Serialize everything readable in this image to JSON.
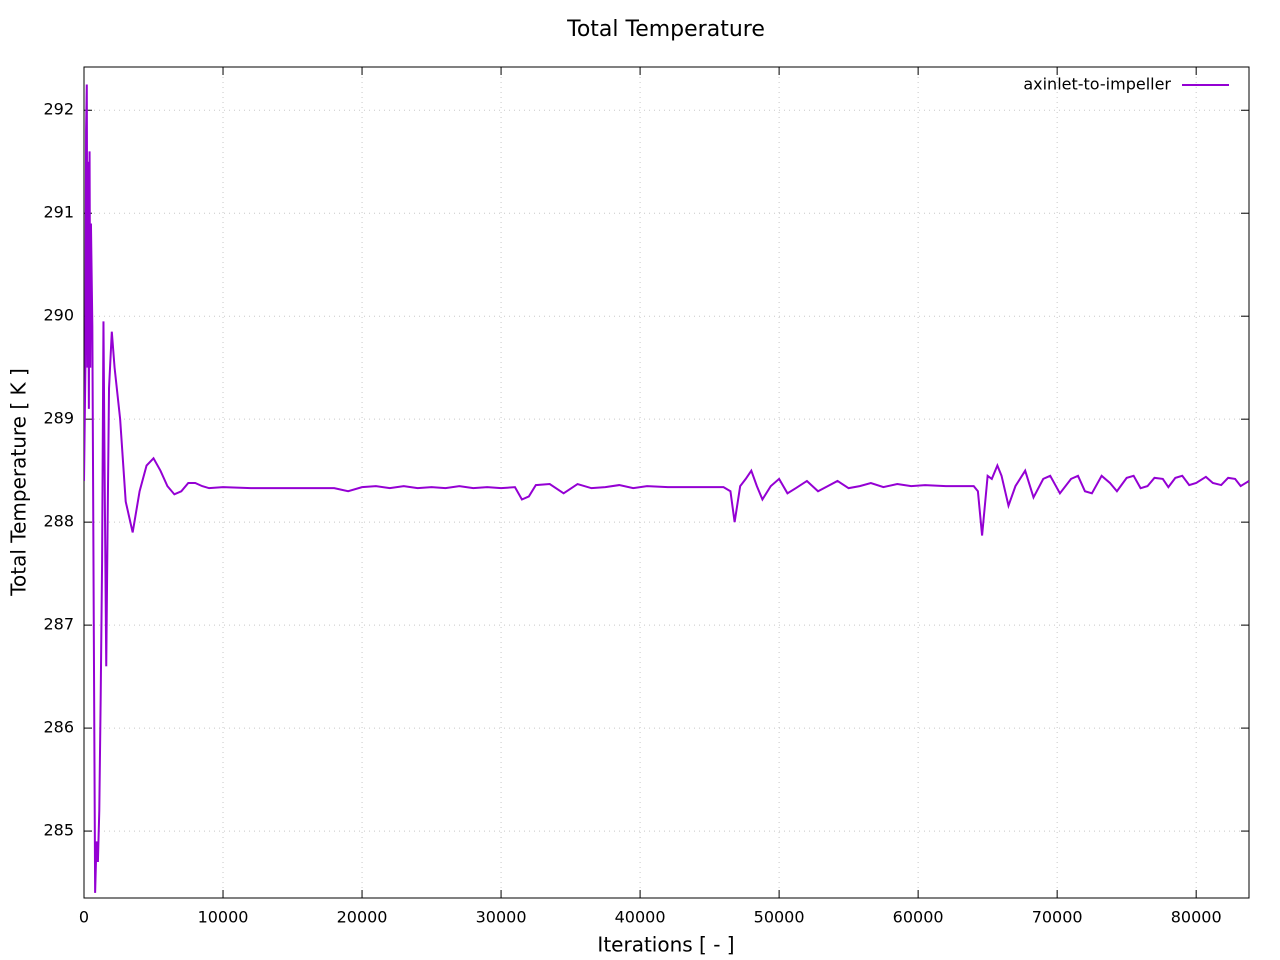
{
  "chart_data": {
    "type": "line",
    "title": "Total Temperature",
    "x_label": "Iterations [ - ]",
    "y_label": "Total Temperature [ K ]",
    "xlim": [
      0,
      83800
    ],
    "ylim": [
      284.35,
      292.42
    ],
    "xticks": [
      0,
      10000,
      20000,
      30000,
      40000,
      50000,
      60000,
      70000,
      80000
    ],
    "yticks": [
      285,
      286,
      287,
      288,
      289,
      290,
      291,
      292
    ],
    "grid": true,
    "legend": "top-right",
    "x": [
      0,
      100,
      150,
      200,
      250,
      300,
      350,
      400,
      450,
      500,
      600,
      700,
      800,
      900,
      1000,
      1100,
      1200,
      1300,
      1400,
      1500,
      1600,
      1700,
      1800,
      2000,
      2200,
      2600,
      3000,
      3500,
      4000,
      4500,
      5000,
      5500,
      6000,
      6500,
      7000,
      7500,
      8000,
      8500,
      9000,
      10000,
      12000,
      15000,
      18000,
      19000,
      20000,
      21000,
      22000,
      23000,
      24000,
      25000,
      26000,
      27000,
      28000,
      29000,
      30000,
      31000,
      31500,
      32000,
      32500,
      33500,
      34500,
      35500,
      36500,
      37500,
      38500,
      39500,
      40500,
      42000,
      44000,
      46000,
      46500,
      46800,
      47200,
      47600,
      48000,
      48400,
      48800,
      49400,
      50000,
      50600,
      51200,
      52000,
      52800,
      53500,
      54200,
      55000,
      55800,
      56600,
      57500,
      58500,
      59500,
      60500,
      62000,
      64000,
      64300,
      64600,
      65000,
      65300,
      65700,
      66000,
      66500,
      67000,
      67700,
      68300,
      69000,
      69500,
      70200,
      71000,
      71500,
      72000,
      72500,
      73200,
      73800,
      74300,
      75000,
      75500,
      76000,
      76500,
      77000,
      77600,
      78000,
      78500,
      79000,
      79500,
      80000,
      80700,
      81200,
      81800,
      82300,
      82800,
      83200,
      83800
    ],
    "series": [
      {
        "name": "axinlet-to-impeller",
        "color": "#9400d3",
        "values": [
          288.4,
          289.5,
          291.8,
          292.25,
          289.5,
          291.5,
          289.1,
          291.6,
          289.5,
          290.9,
          289.9,
          287.1,
          284.4,
          284.9,
          284.7,
          285.2,
          286.3,
          287.6,
          289.95,
          288.2,
          286.6,
          288.0,
          289.3,
          289.85,
          289.5,
          289.0,
          288.2,
          287.9,
          288.3,
          288.55,
          288.62,
          288.5,
          288.35,
          288.27,
          288.3,
          288.38,
          288.38,
          288.35,
          288.33,
          288.34,
          288.33,
          288.33,
          288.33,
          288.3,
          288.34,
          288.35,
          288.33,
          288.35,
          288.33,
          288.34,
          288.33,
          288.35,
          288.33,
          288.34,
          288.33,
          288.34,
          288.22,
          288.25,
          288.36,
          288.37,
          288.28,
          288.37,
          288.33,
          288.34,
          288.36,
          288.33,
          288.35,
          288.34,
          288.34,
          288.34,
          288.3,
          288.0,
          288.35,
          288.42,
          288.5,
          288.35,
          288.22,
          288.35,
          288.42,
          288.28,
          288.33,
          288.4,
          288.3,
          288.35,
          288.4,
          288.33,
          288.35,
          288.38,
          288.34,
          288.37,
          288.35,
          288.36,
          288.35,
          288.35,
          288.3,
          287.87,
          288.45,
          288.42,
          288.55,
          288.45,
          288.16,
          288.35,
          288.5,
          288.24,
          288.42,
          288.45,
          288.28,
          288.42,
          288.45,
          288.3,
          288.28,
          288.45,
          288.38,
          288.3,
          288.43,
          288.45,
          288.33,
          288.35,
          288.43,
          288.42,
          288.34,
          288.43,
          288.45,
          288.36,
          288.38,
          288.44,
          288.38,
          288.36,
          288.43,
          288.42,
          288.35,
          288.4
        ]
      }
    ]
  }
}
